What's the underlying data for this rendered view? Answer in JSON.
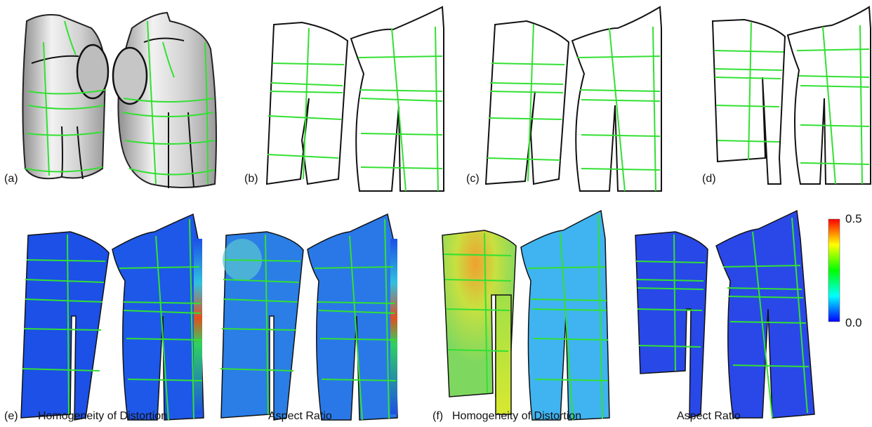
{
  "panels": [
    {
      "id": "a",
      "label": "(a)"
    },
    {
      "id": "b",
      "label": "(b)"
    },
    {
      "id": "c",
      "label": "(c)"
    },
    {
      "id": "d",
      "label": "(d)"
    },
    {
      "id": "e",
      "label": "(e)",
      "captions": [
        "Homogeneity of Distortion",
        "Aspect Ratio"
      ]
    },
    {
      "id": "f",
      "label": "(f)",
      "captions": [
        "Homogeneity of Distortion",
        "Aspect Ratio"
      ]
    }
  ],
  "colorbar": {
    "max": "0.5",
    "min": "0.0",
    "stops": [
      "#0000ff",
      "#00ffff",
      "#00ff00",
      "#ffff00",
      "#ff0000"
    ]
  },
  "colors": {
    "grid_line": "#33e033",
    "outline": "#111111",
    "dist_base": "#1c50e6",
    "dist_f_sleeve": "#a8e040",
    "dist_f_body": "#3fb4f0"
  }
}
